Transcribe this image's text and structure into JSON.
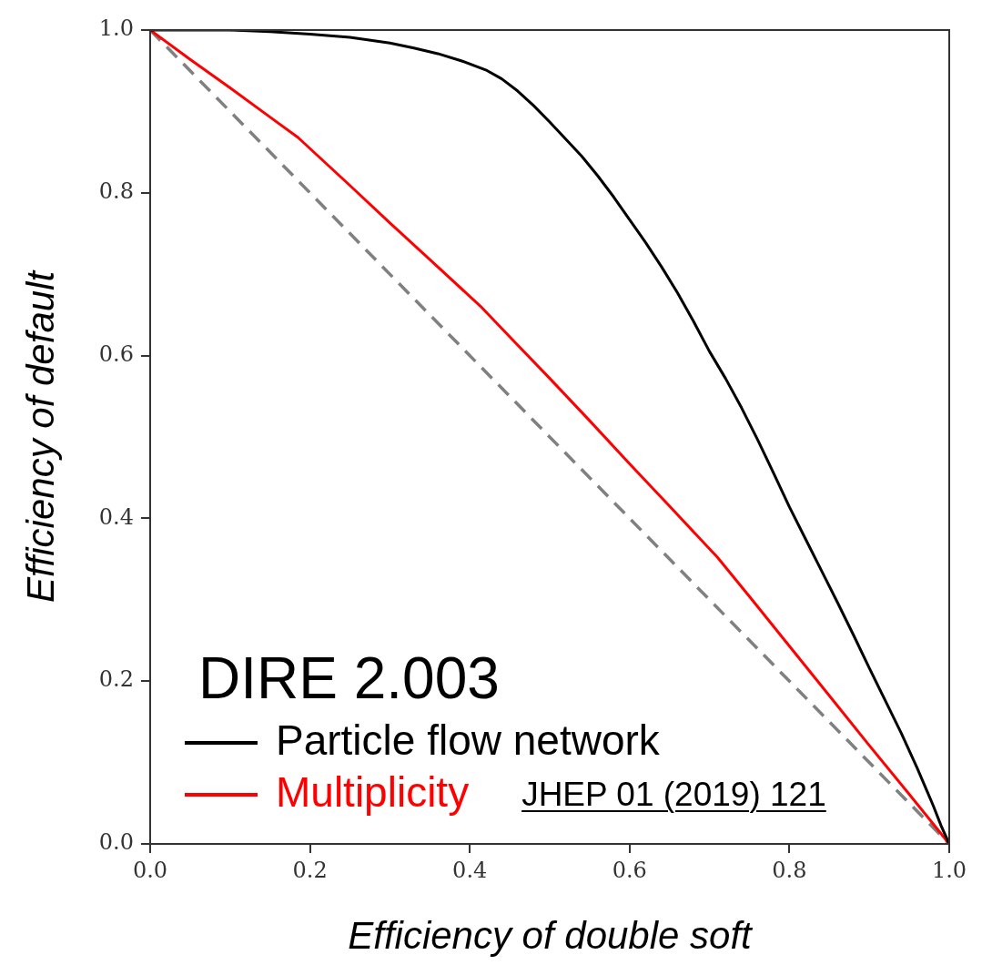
{
  "chart_data": {
    "type": "line",
    "xlabel": "Efficiency of double soft",
    "ylabel": "Efficiency of default",
    "annotations": [
      "DIRE 2.003",
      "JHEP 01 (2019) 121"
    ],
    "xlim": [
      0,
      1
    ],
    "ylim": [
      0,
      1
    ],
    "xticks": [
      {
        "value": 0,
        "label": "0.0"
      },
      0.2,
      0.4,
      0.6,
      0.8,
      {
        "value": 1,
        "label": "1.0"
      }
    ],
    "yticks": [
      {
        "value": 0,
        "label": "0.0"
      },
      0.2,
      0.4,
      0.6,
      0.8,
      {
        "value": 1,
        "label": "1.0"
      }
    ],
    "legend": "bottom left",
    "series": [
      {
        "name": "Particle flow network",
        "color": "#000000",
        "x": [
          0,
          0.05,
          0.1,
          0.15,
          0.2,
          0.25,
          0.3,
          0.33,
          0.36,
          0.39,
          0.42,
          0.44,
          0.46,
          0.48,
          0.5,
          0.52,
          0.54,
          0.56,
          0.58,
          0.6,
          0.62,
          0.64,
          0.66,
          0.68,
          0.7,
          0.72,
          0.74,
          0.76,
          0.78,
          0.8,
          0.82,
          0.84,
          0.86,
          0.88,
          0.9,
          0.92,
          0.94,
          0.96,
          0.98,
          0.99,
          1
        ],
        "values": [
          1,
          1,
          1,
          0.998,
          0.995,
          0.991,
          0.984,
          0.978,
          0.971,
          0.962,
          0.951,
          0.94,
          0.925,
          0.907,
          0.887,
          0.866,
          0.845,
          0.821,
          0.795,
          0.767,
          0.739,
          0.709,
          0.677,
          0.642,
          0.605,
          0.572,
          0.536,
          0.497,
          0.456,
          0.414,
          0.375,
          0.336,
          0.297,
          0.257,
          0.216,
          0.176,
          0.136,
          0.093,
          0.047,
          0.022,
          0
        ]
      },
      {
        "name": "Multiplicity",
        "color": "#ff0000",
        "x": [
          0,
          0.05,
          0.1,
          0.15,
          0.185,
          0.25,
          0.3,
          0.35,
          0.413,
          0.45,
          0.5,
          0.55,
          0.6,
          0.65,
          0.71,
          0.75,
          0.8,
          0.85,
          0.9,
          0.95,
          1
        ],
        "values": [
          1,
          0.964,
          0.929,
          0.893,
          0.868,
          0.809,
          0.763,
          0.718,
          0.661,
          0.623,
          0.572,
          0.52,
          0.467,
          0.415,
          0.352,
          0.304,
          0.243,
          0.182,
          0.121,
          0.061,
          0
        ]
      },
      {
        "color": "#808080",
        "line_style": "dashed",
        "x": [
          0,
          1
        ],
        "values": [
          1,
          0
        ]
      }
    ]
  }
}
